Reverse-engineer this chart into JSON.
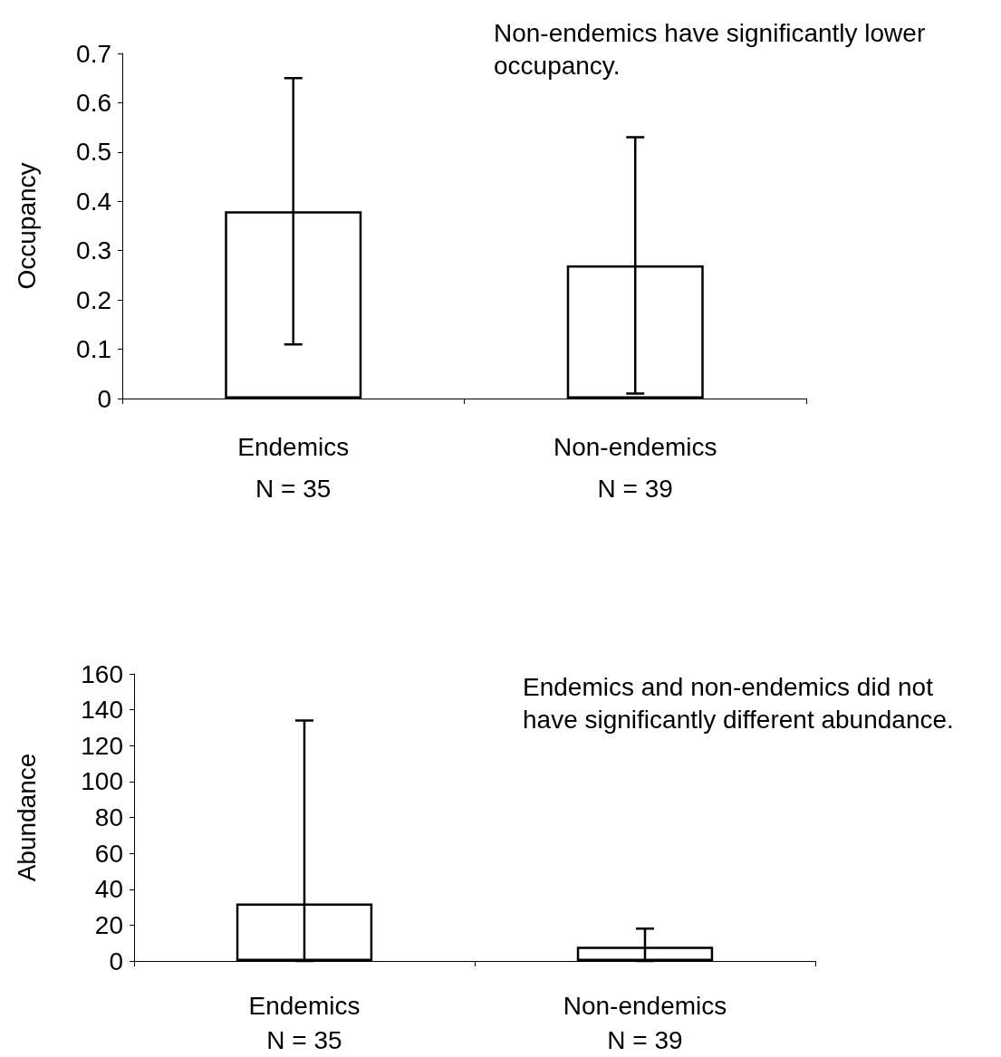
{
  "chart_data": [
    {
      "type": "bar",
      "ylabel": "Occupancy",
      "categories": [
        "Endemics\nN = 35",
        "Non-endemics\nN = 39"
      ],
      "values": [
        0.38,
        0.27
      ],
      "errors": [
        [
          0.11,
          0.65
        ],
        [
          0.01,
          0.53
        ]
      ],
      "color": "#ffffff",
      "ylim": [
        0,
        0.7
      ],
      "yticks": [
        0,
        0.1,
        0.2,
        0.3,
        0.4,
        0.5,
        0.6,
        0.7
      ],
      "grid": false,
      "annotations": [
        "Non-endemics have significantly lower occupancy."
      ]
    },
    {
      "type": "bar",
      "ylabel": "Abundance",
      "categories": [
        "Endemics\nN = 35",
        "Non-endemics\nN = 39"
      ],
      "values": [
        32,
        8
      ],
      "errors": [
        [
          0,
          134
        ],
        [
          0,
          18
        ]
      ],
      "color": "#ffffff",
      "ylim": [
        0,
        160
      ],
      "yticks": [
        0,
        20,
        40,
        60,
        80,
        100,
        120,
        140,
        160
      ],
      "grid": false,
      "annotations": [
        "Endemics and non-endemics did not have significantly different abundance."
      ]
    }
  ]
}
